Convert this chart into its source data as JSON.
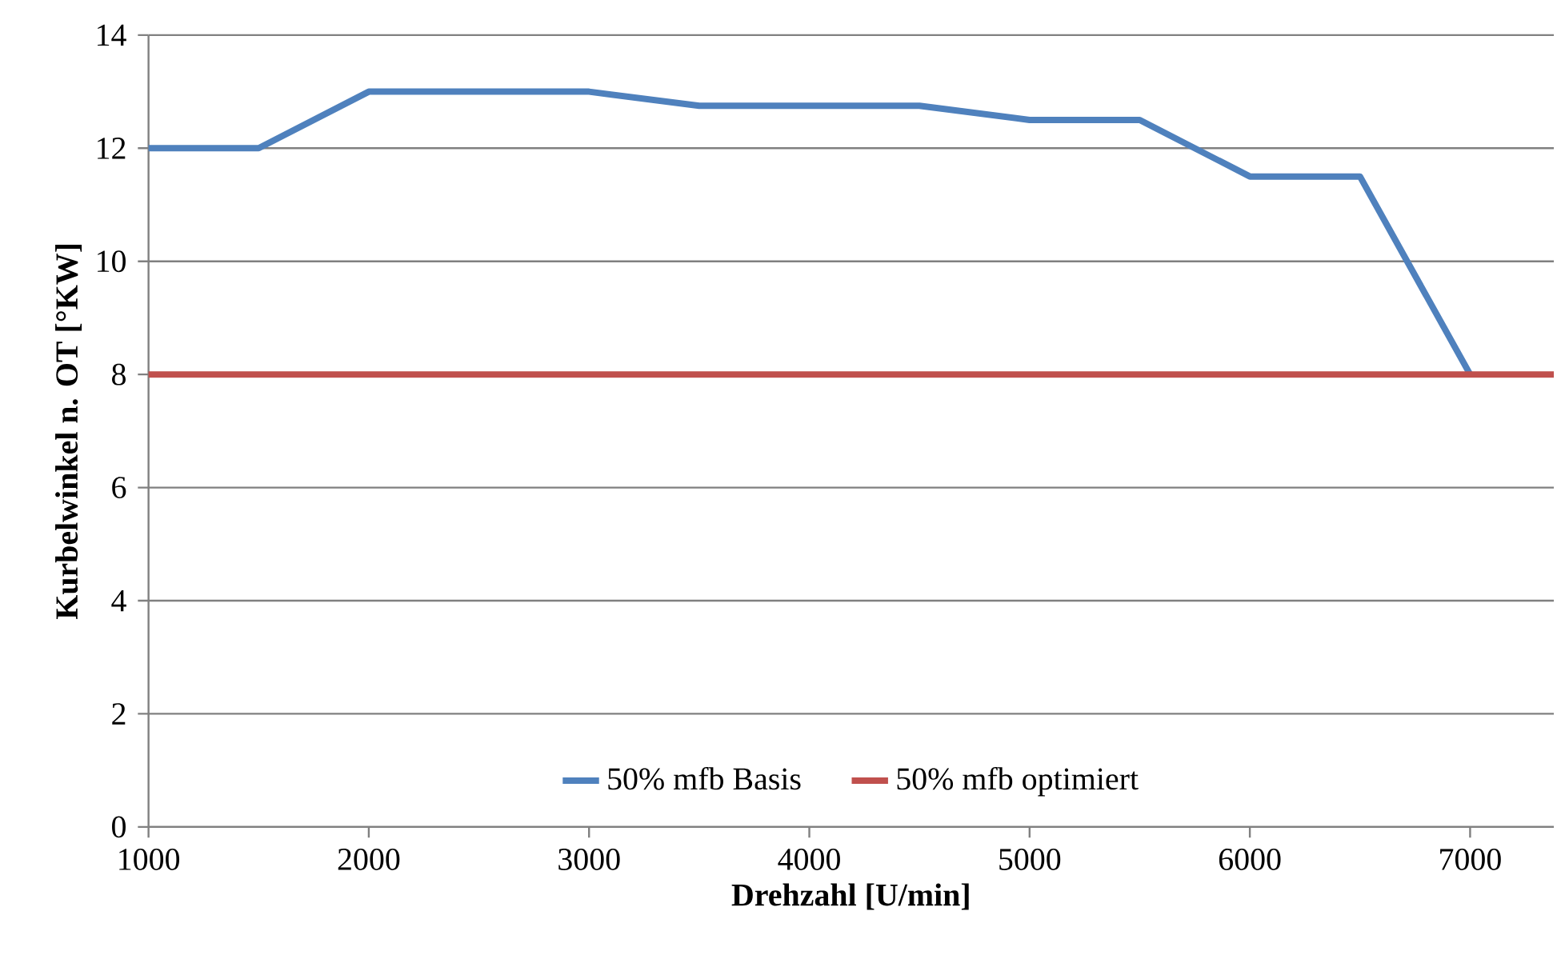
{
  "chart_data": {
    "type": "line",
    "xlabel": "Drehzahl [U/min]",
    "ylabel": "Kurbelwinkel n. OT [°KW]",
    "xlim": [
      1000,
      7380
    ],
    "ylim": [
      0,
      14
    ],
    "xticks": [
      1000,
      2000,
      3000,
      4000,
      5000,
      6000,
      7000
    ],
    "yticks": [
      0,
      2,
      4,
      6,
      8,
      10,
      12,
      14
    ],
    "grid": "y",
    "legend": "bottom",
    "series": [
      {
        "name": "50% mfb Basis",
        "color": "#4f81bd",
        "x": [
          1000,
          1500,
          2000,
          2500,
          3000,
          3500,
          4000,
          4500,
          5000,
          5500,
          6000,
          6500,
          7000
        ],
        "values": [
          12,
          12,
          13,
          13,
          13,
          12.75,
          12.75,
          12.75,
          12.5,
          12.5,
          11.5,
          11.5,
          8
        ]
      },
      {
        "name": "50% mfb optimiert",
        "color": "#c0504d",
        "x": [
          1000,
          1500,
          2000,
          2500,
          3000,
          3500,
          4000,
          4500,
          5000,
          5500,
          6000,
          6500,
          7000,
          7380
        ],
        "values": [
          8,
          8,
          8,
          8,
          8,
          8,
          8,
          8,
          8,
          8,
          8,
          8,
          8,
          8
        ]
      }
    ]
  }
}
